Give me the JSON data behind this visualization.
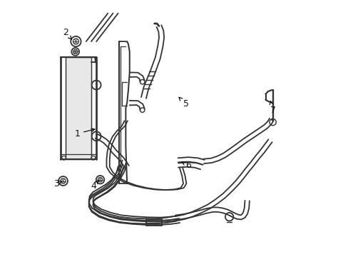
{
  "bg_color": "#ffffff",
  "line_color": "#333333",
  "label_color": "#111111",
  "lw": 1.3,
  "fig_w": 4.89,
  "fig_h": 3.6,
  "label_positions": {
    "1": {
      "text": [
        0.12,
        0.48
      ],
      "arrow": [
        0.2,
        0.5
      ]
    },
    "2": {
      "text": [
        0.075,
        0.875
      ],
      "arrow": [
        0.105,
        0.84
      ]
    },
    "3": {
      "text": [
        0.038,
        0.285
      ],
      "arrow": [
        0.063,
        0.295
      ]
    },
    "4": {
      "text": [
        0.185,
        0.275
      ],
      "arrow": [
        0.205,
        0.3
      ]
    },
    "5": {
      "text": [
        0.545,
        0.595
      ],
      "arrow": [
        0.51,
        0.63
      ]
    },
    "6": {
      "text": [
        0.555,
        0.355
      ],
      "arrow": [
        0.52,
        0.375
      ]
    },
    "7": {
      "text": [
        0.885,
        0.57
      ],
      "arrow": [
        0.875,
        0.61
      ]
    }
  }
}
